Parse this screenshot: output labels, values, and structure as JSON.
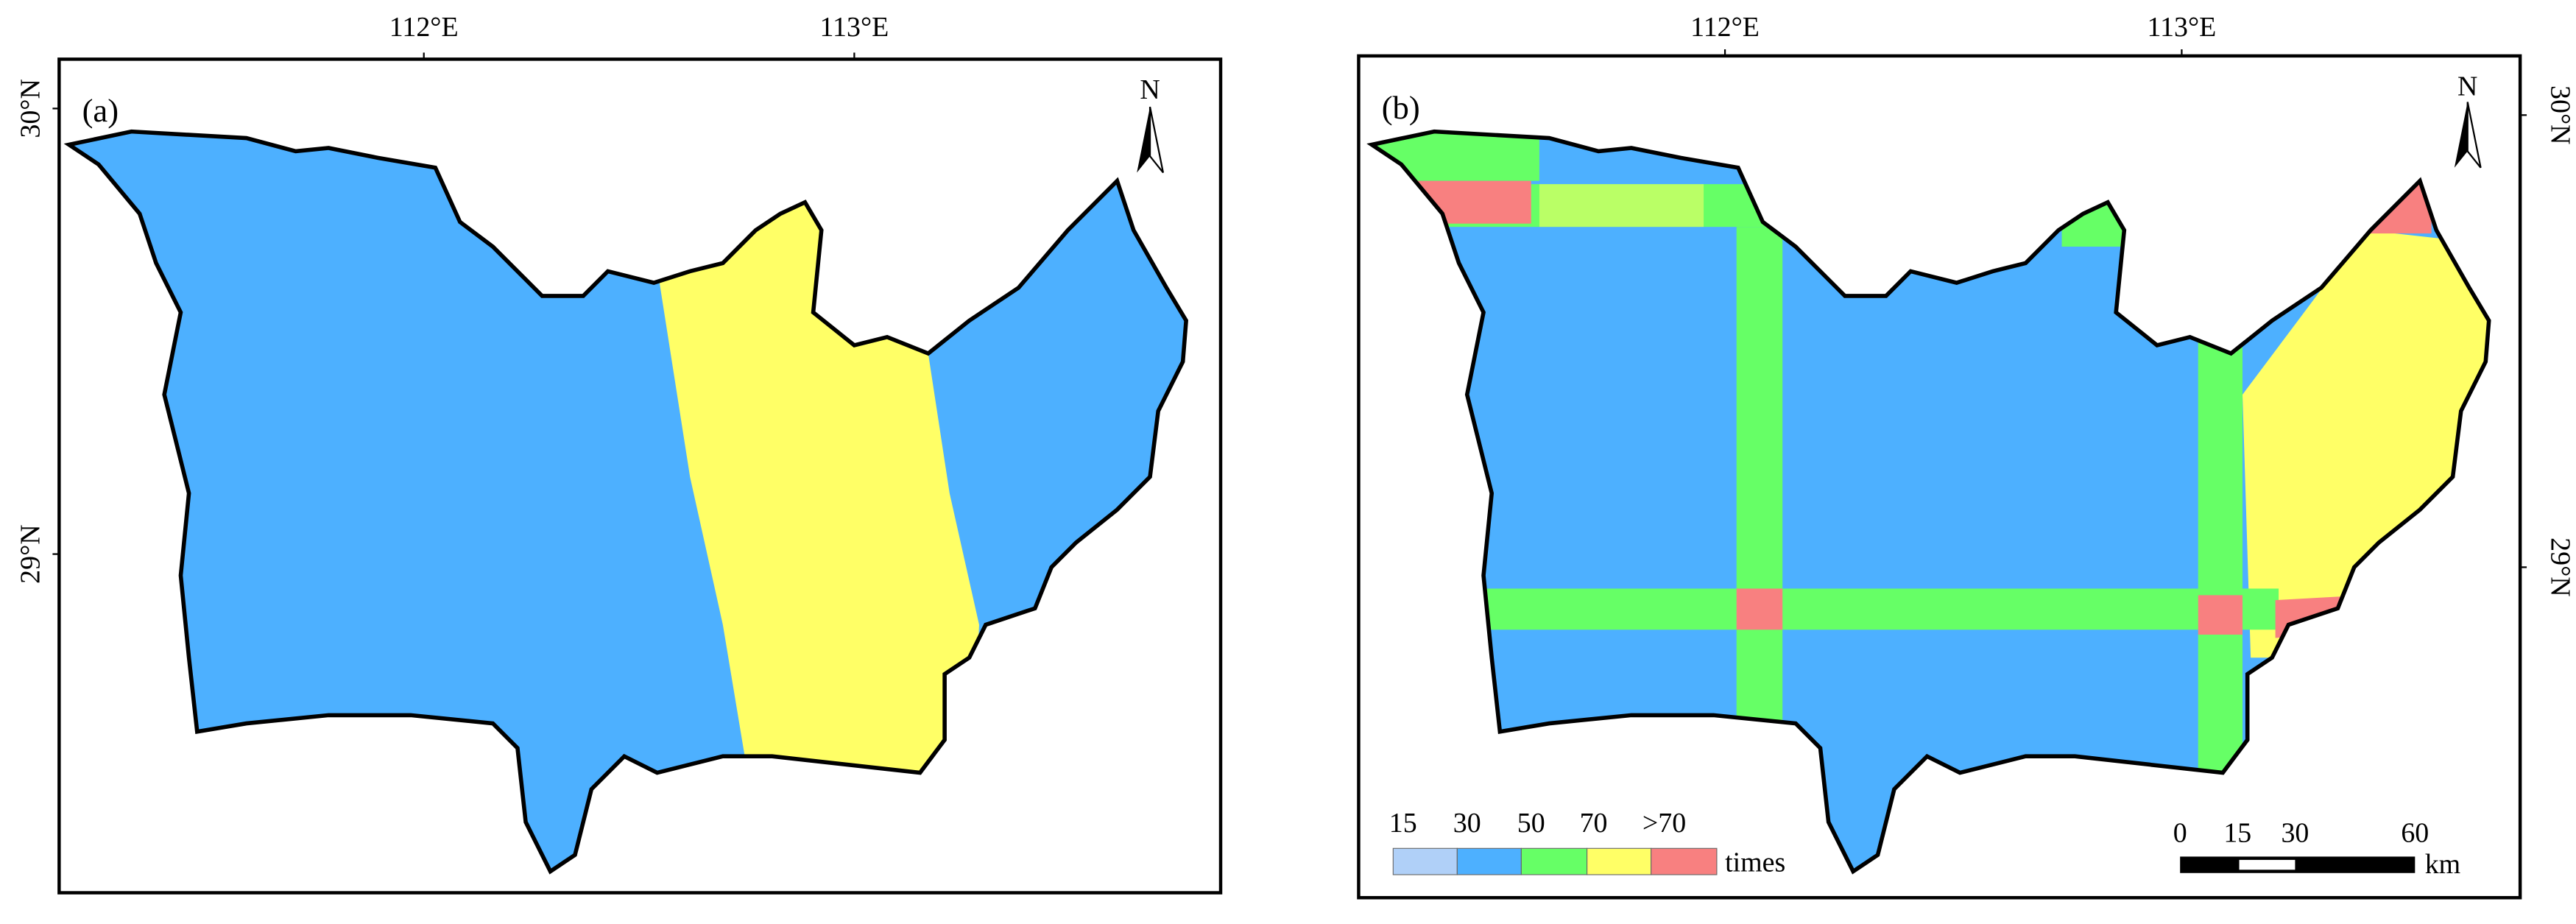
{
  "panels": [
    {
      "label": "(a)",
      "top_ticks": [
        "112°E",
        "113°E"
      ],
      "side_ticks": [
        "30°N",
        "29°N"
      ],
      "north": "N"
    },
    {
      "label": "(b)",
      "top_ticks": [
        "112°E",
        "113°E"
      ],
      "side_ticks": [
        "30°N",
        "29°N"
      ],
      "north": "N",
      "legend": {
        "labels": [
          "15",
          "30",
          "50",
          "70",
          ">70"
        ],
        "unit": "times"
      },
      "scale_bar": {
        "labels": [
          "0",
          "15",
          "30",
          "60"
        ],
        "unit": "km"
      }
    }
  ]
}
